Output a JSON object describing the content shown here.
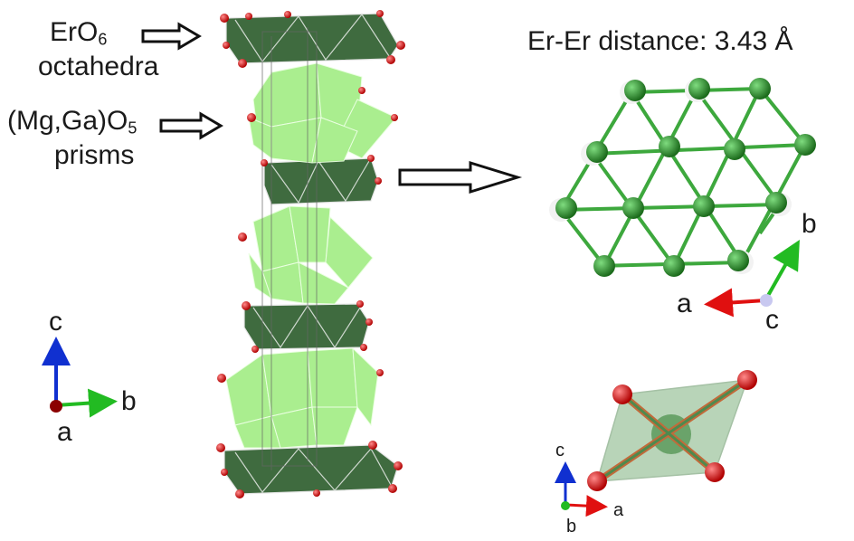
{
  "labels": {
    "ero_main": "ErO",
    "ero_sub": "6",
    "ero_line2": "octahedra",
    "prism_main": "(Mg,Ga)O",
    "prism_sub": "5",
    "prism_line2": "prisms",
    "distance": "Er-Er distance: 3.43 Å"
  },
  "axes_left": {
    "c": "c",
    "b": "b",
    "a": "a"
  },
  "axes_right": {
    "b": "b",
    "a": "a",
    "c": "c"
  },
  "axes_small": {
    "c": "c",
    "a": "a",
    "b": "b"
  },
  "colors": {
    "octahedra": "#3f6b3f",
    "prisms": "#a6ee8a",
    "oxygen": "#d42020",
    "er_atom": "#2e8b2e",
    "bond": "#3da83d",
    "axis_a": "#e01010",
    "axis_b": "#22bb22",
    "axis_c": "#1030d0"
  }
}
